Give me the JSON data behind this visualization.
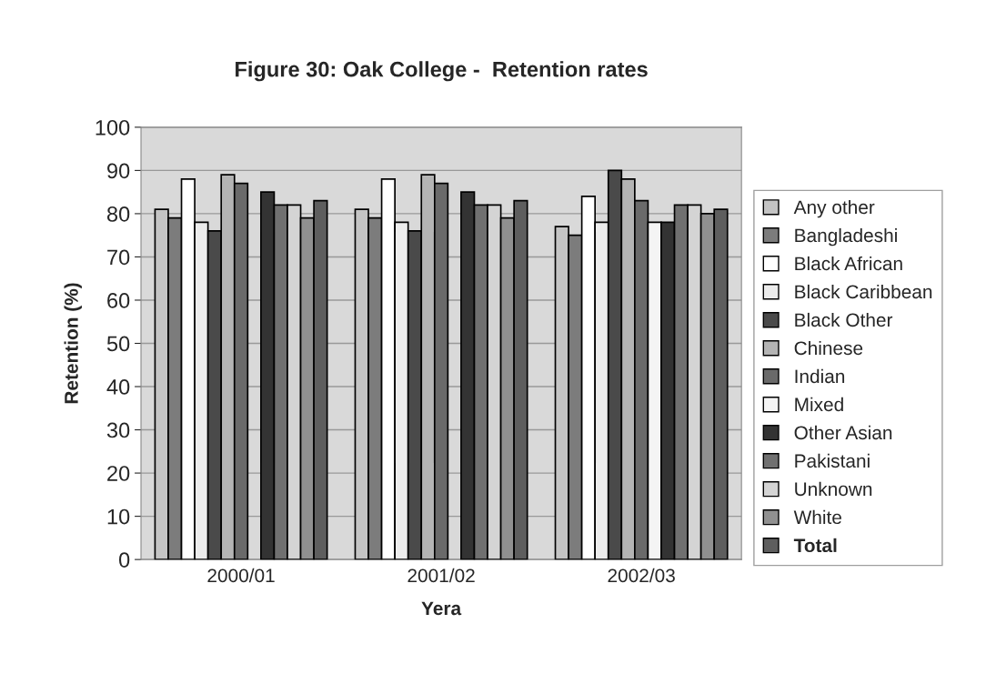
{
  "chart_data": {
    "type": "bar",
    "title": "Figure 30: Oak College -  Retention rates",
    "xlabel": "Yera",
    "ylabel": "Retention (%)",
    "categories": [
      "2000/01",
      "2001/02",
      "2002/03"
    ],
    "series": [
      {
        "name": "Any other",
        "color": "#c4c4c4",
        "values": [
          81,
          81,
          77
        ]
      },
      {
        "name": "Bangladeshi",
        "color": "#7c7c7c",
        "values": [
          79,
          79,
          75
        ]
      },
      {
        "name": "Black African",
        "color": "#ffffff",
        "values": [
          88,
          88,
          84
        ]
      },
      {
        "name": "Black Caribbean",
        "color": "#ececec",
        "values": [
          78,
          78,
          78
        ]
      },
      {
        "name": "Black Other",
        "color": "#4a4a4a",
        "values": [
          76,
          76,
          90
        ]
      },
      {
        "name": "Chinese",
        "color": "#b4b4b4",
        "values": [
          89,
          89,
          88
        ]
      },
      {
        "name": "Indian",
        "color": "#6a6a6a",
        "values": [
          87,
          87,
          83
        ]
      },
      {
        "name": "Mixed",
        "color": "#f4f4f4",
        "values": [
          null,
          null,
          78
        ]
      },
      {
        "name": "Other Asian",
        "color": "#333333",
        "values": [
          85,
          85,
          78
        ]
      },
      {
        "name": "Pakistani",
        "color": "#707070",
        "values": [
          82,
          82,
          82
        ]
      },
      {
        "name": "Unknown",
        "color": "#d4d4d4",
        "values": [
          82,
          82,
          82
        ]
      },
      {
        "name": "White",
        "color": "#909090",
        "values": [
          79,
          79,
          80
        ]
      },
      {
        "name": "Total",
        "color": "#5e5e5e",
        "values": [
          83,
          83,
          81
        ]
      }
    ],
    "ylim": [
      0,
      100
    ],
    "yticks": [
      0,
      10,
      20,
      30,
      40,
      50,
      60,
      70,
      80,
      90,
      100
    ],
    "grid": "y",
    "legend": "right"
  }
}
